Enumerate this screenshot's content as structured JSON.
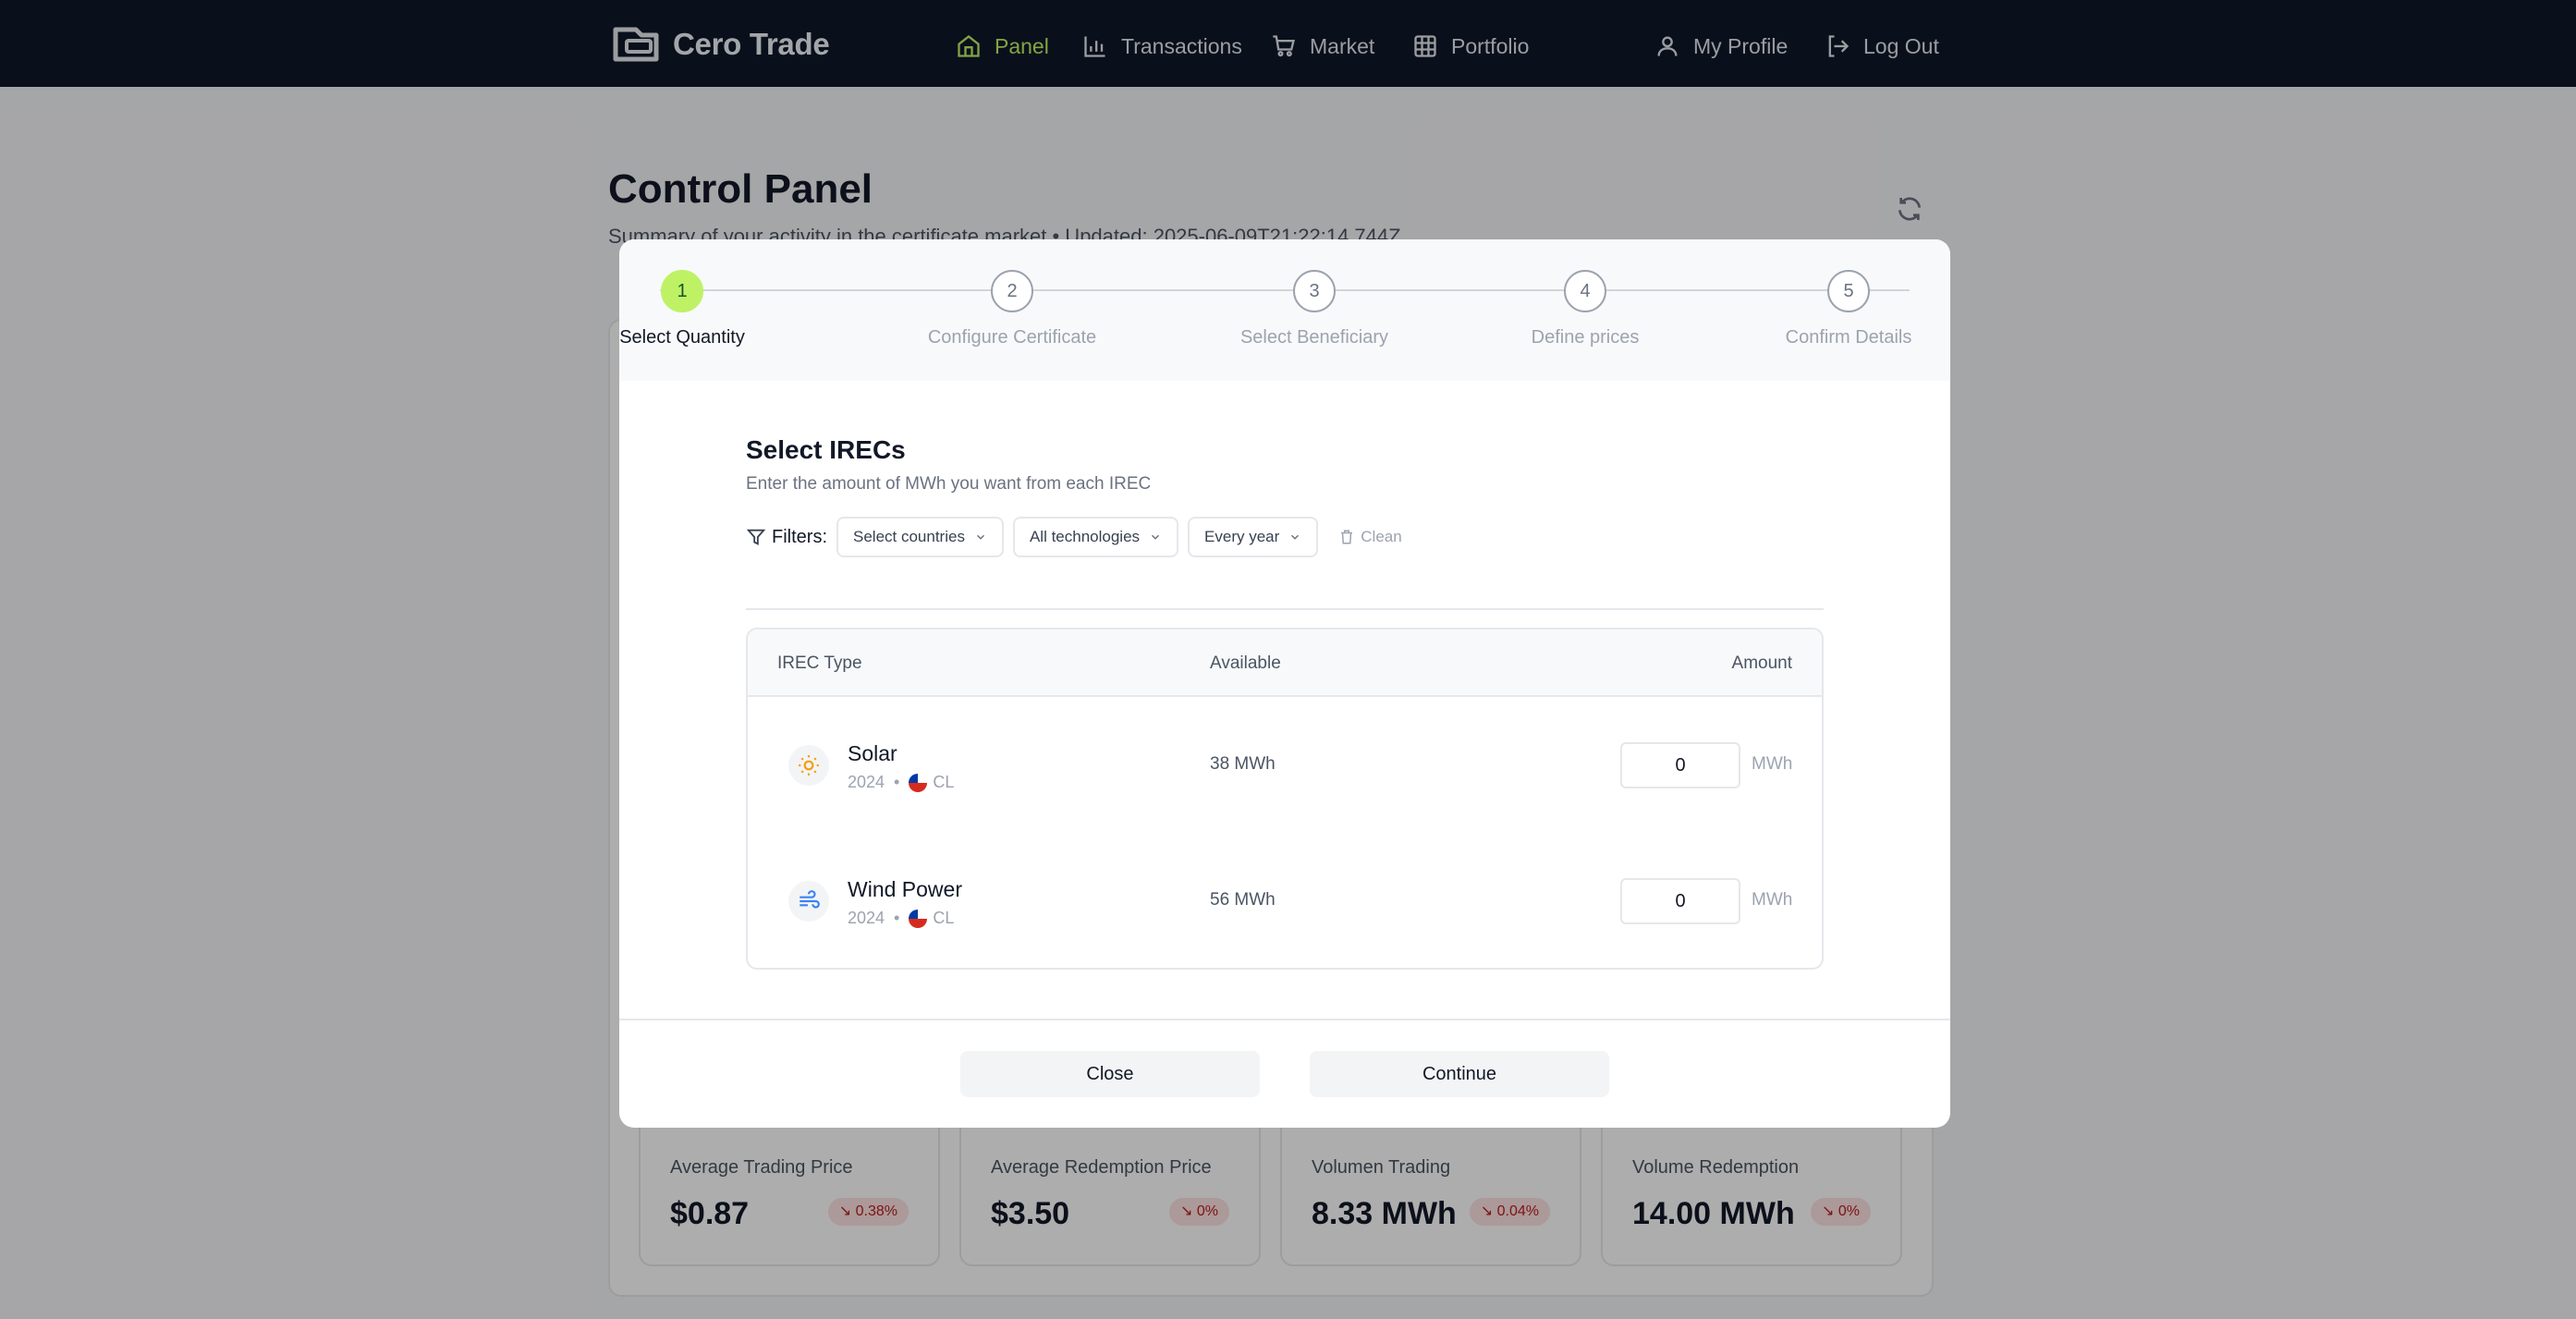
{
  "header": {
    "brand": "Cero Trade",
    "nav": [
      {
        "label": "Panel",
        "icon": "home-icon",
        "active": true
      },
      {
        "label": "Transactions",
        "icon": "bar-chart-icon",
        "active": false
      },
      {
        "label": "Market",
        "icon": "cart-icon",
        "active": false
      },
      {
        "label": "Portfolio",
        "icon": "grid-icon",
        "active": false
      }
    ],
    "profile_label": "My Profile",
    "logout_label": "Log Out"
  },
  "page": {
    "title": "Control Panel",
    "subtitle": "Summary of your activity in the certificate market • Updated: 2025-06-09T21:22:14.744Z"
  },
  "stats": [
    {
      "label": "Average Trading Price",
      "value": "$0.87",
      "change": "0.38%"
    },
    {
      "label": "Average Redemption Price",
      "value": "$3.50",
      "change": "0%"
    },
    {
      "label": "Volumen Trading",
      "value": "8.33 MWh",
      "change": "0.04%"
    },
    {
      "label": "Volume Redemption",
      "value": "14.00 MWh",
      "change": "0%"
    }
  ],
  "modal": {
    "steps": [
      {
        "num": "1",
        "label": "Select Quantity"
      },
      {
        "num": "2",
        "label": "Configure Certificate"
      },
      {
        "num": "3",
        "label": "Select Beneficiary"
      },
      {
        "num": "4",
        "label": "Define prices"
      },
      {
        "num": "5",
        "label": "Confirm Details"
      }
    ],
    "active_step": 1,
    "title": "Select IRECs",
    "subtitle": "Enter the amount of MWh you want from each IREC",
    "filters": {
      "label": "Filters:",
      "countries": "Select countries",
      "technologies": "All technologies",
      "year": "Every year",
      "clean": "Clean"
    },
    "table": {
      "headers": {
        "type": "IREC Type",
        "available": "Available",
        "amount": "Amount"
      },
      "rows": [
        {
          "name": "Solar",
          "year": "2024",
          "country": "CL",
          "available": "38 MWh",
          "amount": "0",
          "unit": "MWh",
          "icon": "sun-icon"
        },
        {
          "name": "Wind Power",
          "year": "2024",
          "country": "CL",
          "available": "56 MWh",
          "amount": "0",
          "unit": "MWh",
          "icon": "wind-icon"
        }
      ]
    },
    "close_label": "Close",
    "continue_label": "Continue"
  },
  "colors": {
    "accent": "#bef264",
    "navbar": "#0f172a",
    "badge_negative": "#fee2e2"
  }
}
